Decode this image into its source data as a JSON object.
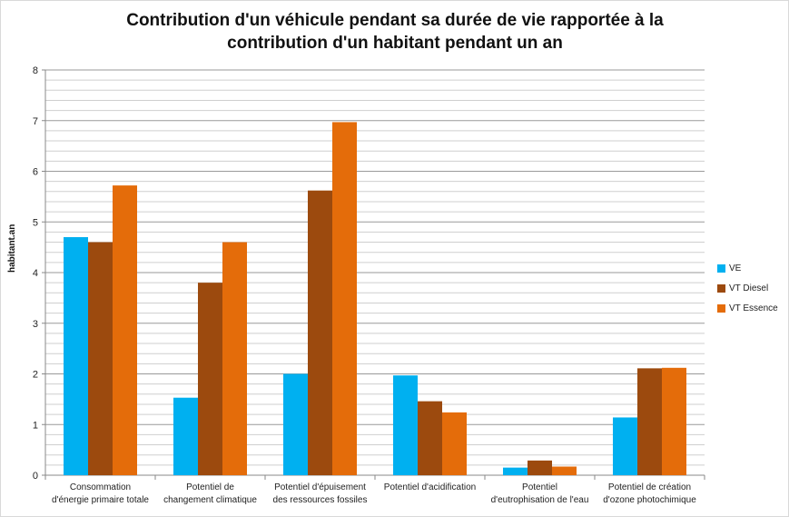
{
  "chart_data": {
    "type": "bar",
    "title_lines": [
      "Contribution d'un véhicule pendant sa durée de vie rapportée à la",
      "contribution d'un habitant pendant un an"
    ],
    "ylabel": "habitant.an",
    "ylim": [
      0,
      8
    ],
    "yticks": [
      0,
      1,
      2,
      3,
      4,
      5,
      6,
      7,
      8
    ],
    "grid": true,
    "legend_placement": "right",
    "categories": [
      [
        "Consommation",
        "d'énergie primaire totale"
      ],
      [
        "Potentiel de",
        "changement climatique"
      ],
      [
        "Potentiel d'épuisement",
        "des ressources fossiles"
      ],
      [
        "Potentiel d'acidification"
      ],
      [
        "Potentiel",
        "d'eutrophisation de l'eau"
      ],
      [
        "Potentiel de création",
        "d'ozone photochimique"
      ]
    ],
    "series": [
      {
        "name": "VE",
        "color": "#00b0f0",
        "values": [
          4.7,
          1.53,
          2.0,
          1.97,
          0.15,
          1.14
        ]
      },
      {
        "name": "VT Diesel",
        "color": "#9c4a0e",
        "values": [
          4.6,
          3.8,
          5.62,
          1.46,
          0.29,
          2.11
        ]
      },
      {
        "name": "VT Essence",
        "color": "#e46c0a",
        "values": [
          5.72,
          4.6,
          6.97,
          1.24,
          0.17,
          2.12
        ]
      }
    ]
  }
}
